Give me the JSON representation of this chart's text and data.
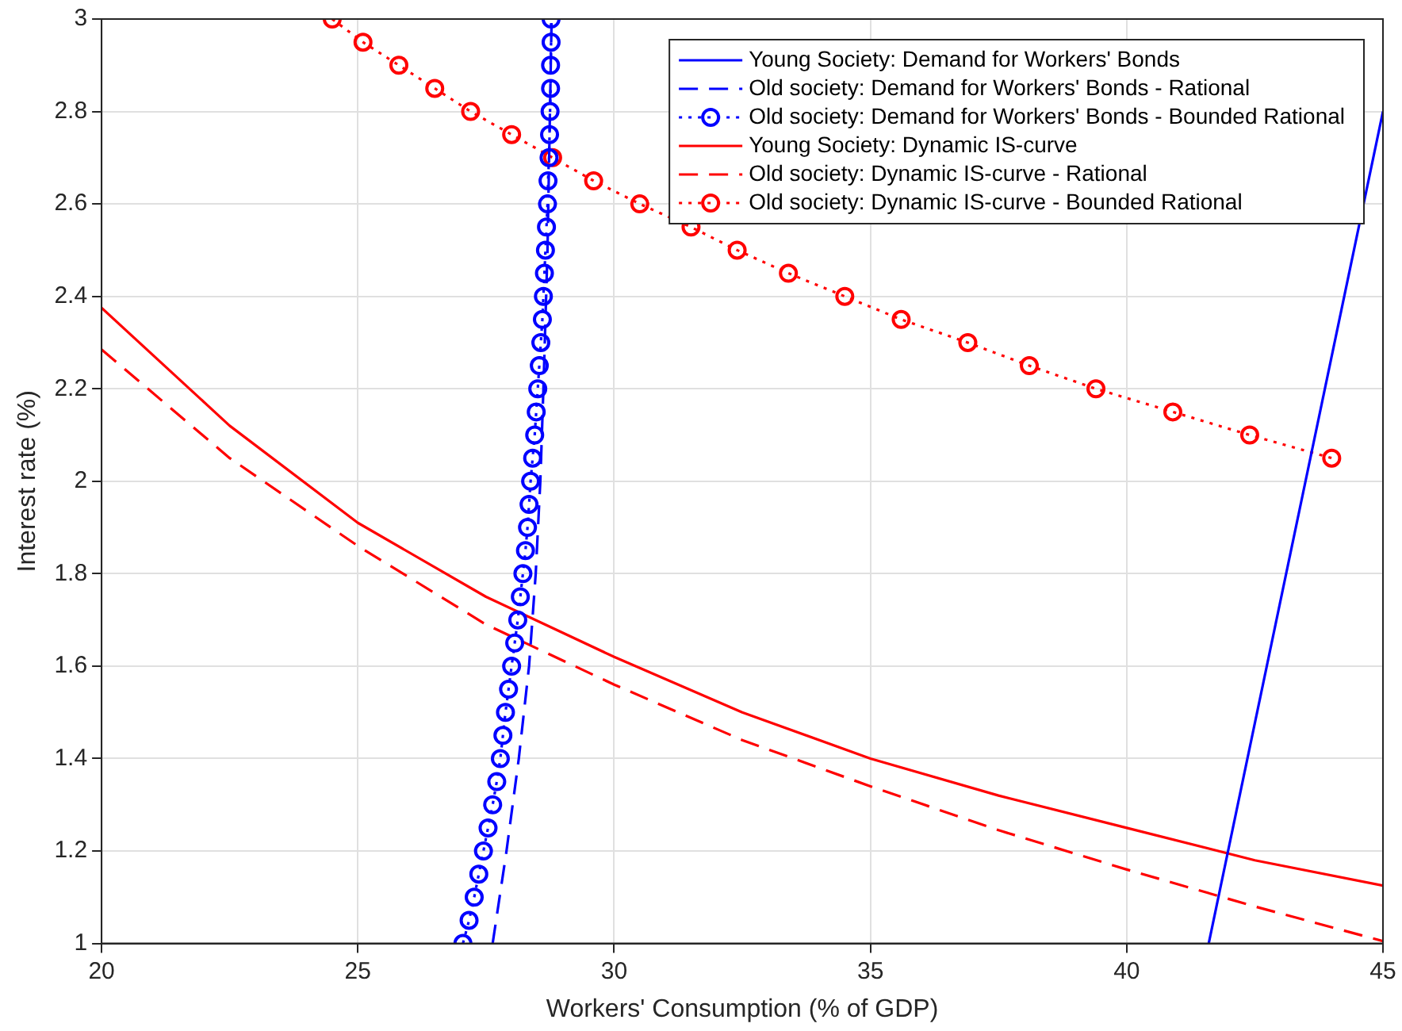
{
  "chart_data": {
    "type": "line",
    "xlabel": "Workers' Consumption (% of GDP)",
    "ylabel": "Interest rate (%)",
    "xlim": [
      20,
      45
    ],
    "xticks": [
      20,
      25,
      30,
      35,
      40,
      45
    ],
    "ylim": [
      1,
      3
    ],
    "yticks": [
      1,
      1.2,
      1.4,
      1.6,
      1.8,
      2,
      2.2,
      2.4,
      2.6,
      2.8,
      3
    ],
    "grid": true,
    "legend": "top right",
    "series": [
      {
        "name": "Young Society: Demand for Workers' Bonds",
        "color": "#0000ff",
        "line_style": "solid",
        "marker": "none",
        "x": [
          41.6,
          45
        ],
        "values": [
          1,
          2.8
        ]
      },
      {
        "name": "Old society: Demand for Workers' Bonds - Rational",
        "color": "#0000ff",
        "line_style": "dashed",
        "marker": "none",
        "x": [
          27.63,
          27.9,
          28.14,
          28.34,
          28.47,
          28.56,
          28.62,
          28.7,
          28.78
        ],
        "values": [
          1,
          1.2,
          1.4,
          1.6,
          1.8,
          2,
          2.2,
          2.5,
          3
        ]
      },
      {
        "name": "Old society: Demand for Workers' Bonds - Bounded Rational",
        "color": "#0000ff",
        "line_style": "dotted",
        "marker": "circle",
        "x": [
          27.05,
          27.17,
          27.27,
          27.36,
          27.45,
          27.54,
          27.63,
          27.71,
          27.78,
          27.83,
          27.88,
          27.94,
          28.0,
          28.06,
          28.12,
          28.17,
          28.22,
          28.27,
          28.31,
          28.34,
          28.37,
          28.41,
          28.45,
          28.48,
          28.51,
          28.54,
          28.57,
          28.6,
          28.62,
          28.64,
          28.66,
          28.68,
          28.7,
          28.71,
          28.73,
          28.74,
          28.75,
          28.76,
          28.76,
          28.77,
          28.77
        ],
        "values": [
          1,
          1.05,
          1.1,
          1.15,
          1.2,
          1.25,
          1.3,
          1.35,
          1.4,
          1.45,
          1.5,
          1.55,
          1.6,
          1.65,
          1.7,
          1.75,
          1.8,
          1.85,
          1.9,
          1.95,
          2,
          2.05,
          2.1,
          2.15,
          2.2,
          2.25,
          2.3,
          2.35,
          2.4,
          2.45,
          2.5,
          2.55,
          2.6,
          2.65,
          2.7,
          2.75,
          2.8,
          2.85,
          2.9,
          2.95,
          3
        ]
      },
      {
        "name": "Young Society: Dynamic IS-curve",
        "color": "#ff0000",
        "line_style": "solid",
        "marker": "none",
        "x": [
          20,
          22.5,
          25,
          27.5,
          30,
          32.5,
          35,
          37.5,
          40,
          42.5,
          45
        ],
        "values": [
          2.375,
          2.12,
          1.91,
          1.75,
          1.62,
          1.5,
          1.4,
          1.32,
          1.25,
          1.18,
          1.125
        ]
      },
      {
        "name": "Old society: Dynamic IS-curve - Rational",
        "color": "#ff0000",
        "line_style": "dashed",
        "marker": "none",
        "x": [
          20,
          22.5,
          25,
          27.5,
          30,
          32.5,
          35,
          37.5,
          40,
          42.5,
          45
        ],
        "values": [
          2.285,
          2.05,
          1.86,
          1.69,
          1.56,
          1.44,
          1.34,
          1.245,
          1.16,
          1.08,
          1.005
        ]
      },
      {
        "name": "Old society: Dynamic IS-curve - Bounded Rational",
        "color": "#ff0000",
        "line_style": "dotted",
        "marker": "circle",
        "x": [
          24.5,
          25.1,
          25.8,
          26.5,
          27.2,
          28.0,
          28.8,
          29.6,
          30.5,
          31.5,
          32.4,
          33.4,
          34.5,
          35.6,
          36.9,
          38.1,
          39.4,
          40.9,
          42.4,
          44.0
        ],
        "values": [
          3,
          2.95,
          2.9,
          2.85,
          2.8,
          2.75,
          2.7,
          2.65,
          2.6,
          2.55,
          2.5,
          2.45,
          2.4,
          2.35,
          2.3,
          2.25,
          2.2,
          2.15,
          2.1,
          2.05
        ]
      }
    ]
  }
}
